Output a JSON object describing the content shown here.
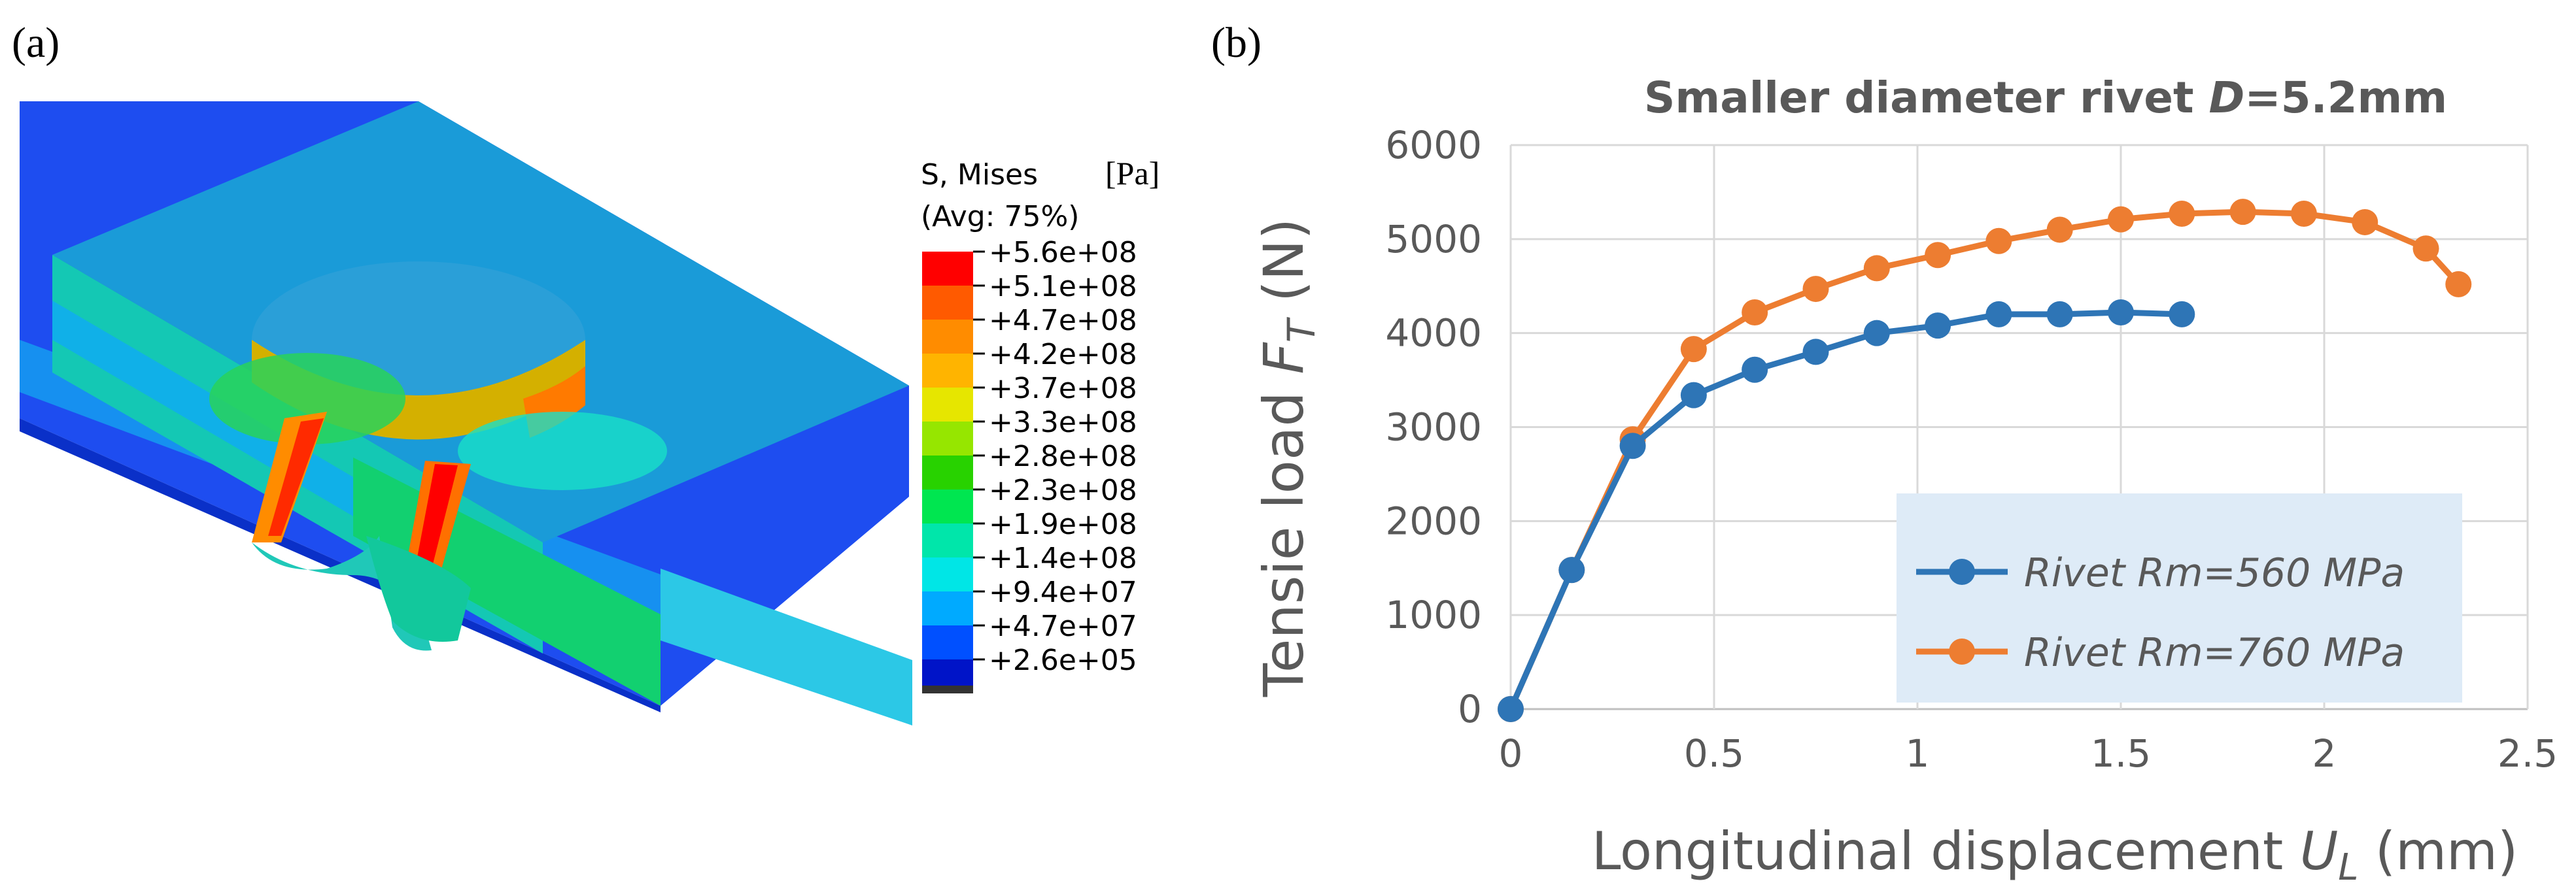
{
  "panel_a": {
    "label": "(a)",
    "legend_title_1": "S, Mises",
    "legend_unit": "[Pa]",
    "legend_title_2": "(Avg: 75%)",
    "legend_entries": [
      {
        "value": "+5.6e+08",
        "color": "#ff0000"
      },
      {
        "value": "+5.1e+08",
        "color": "#ff5a00"
      },
      {
        "value": "+4.7e+08",
        "color": "#ff8c00"
      },
      {
        "value": "+4.2e+08",
        "color": "#ffb400"
      },
      {
        "value": "+3.7e+08",
        "color": "#e6e600"
      },
      {
        "value": "+3.3e+08",
        "color": "#96e600"
      },
      {
        "value": "+2.8e+08",
        "color": "#28d200"
      },
      {
        "value": "+2.3e+08",
        "color": "#00e650"
      },
      {
        "value": "+1.9e+08",
        "color": "#00e6aa"
      },
      {
        "value": "+1.4e+08",
        "color": "#00e6e6"
      },
      {
        "value": "+9.4e+07",
        "color": "#00aaff"
      },
      {
        "value": "+4.7e+07",
        "color": "#0050ff"
      },
      {
        "value": "+2.6e+05",
        "color": "#0014c8"
      }
    ]
  },
  "chart_data": {
    "panel_label": "(b)",
    "type": "line",
    "title_prefix": "Smaller diameter rivet ",
    "title_var": "D",
    "title_suffix": "=5.2mm",
    "xlabel_text": "Longitudinal displacement ",
    "xlabel_var": "U",
    "xlabel_sub": "L",
    "xlabel_unit": " (mm)",
    "ylabel_text": "Tensie load ",
    "ylabel_var": "F",
    "ylabel_sub": "T",
    "ylabel_unit": " (N)",
    "xlim": [
      0,
      2.5
    ],
    "ylim": [
      0,
      6000
    ],
    "xticks": [
      0,
      0.5,
      1,
      1.5,
      2,
      2.5
    ],
    "xtick_labels": [
      "0",
      "0.5",
      "1",
      "1.5",
      "2",
      "2.5"
    ],
    "yticks": [
      0,
      1000,
      2000,
      3000,
      4000,
      5000,
      6000
    ],
    "ytick_labels": [
      "0",
      "1000",
      "2000",
      "3000",
      "4000",
      "5000",
      "6000"
    ],
    "grid": true,
    "legend_position": "lower-right",
    "series": [
      {
        "name": "Rivet Rm=560 MPa",
        "color": "#2e75b6",
        "x": [
          0,
          0.15,
          0.3,
          0.45,
          0.6,
          0.75,
          0.9,
          1.05,
          1.2,
          1.35,
          1.5,
          1.65
        ],
        "y": [
          0,
          1480,
          2800,
          3340,
          3610,
          3800,
          4000,
          4080,
          4200,
          4200,
          4220,
          4200
        ]
      },
      {
        "name": "Rivet Rm=760 MPa",
        "color": "#ed7d31",
        "x": [
          0,
          0.15,
          0.3,
          0.45,
          0.6,
          0.75,
          0.9,
          1.05,
          1.2,
          1.35,
          1.5,
          1.65,
          1.8,
          1.95,
          2.1,
          2.25,
          2.33
        ],
        "y": [
          0,
          1480,
          2870,
          3830,
          4220,
          4470,
          4690,
          4830,
          4980,
          5100,
          5210,
          5270,
          5290,
          5270,
          5180,
          4900,
          4520
        ]
      }
    ]
  }
}
